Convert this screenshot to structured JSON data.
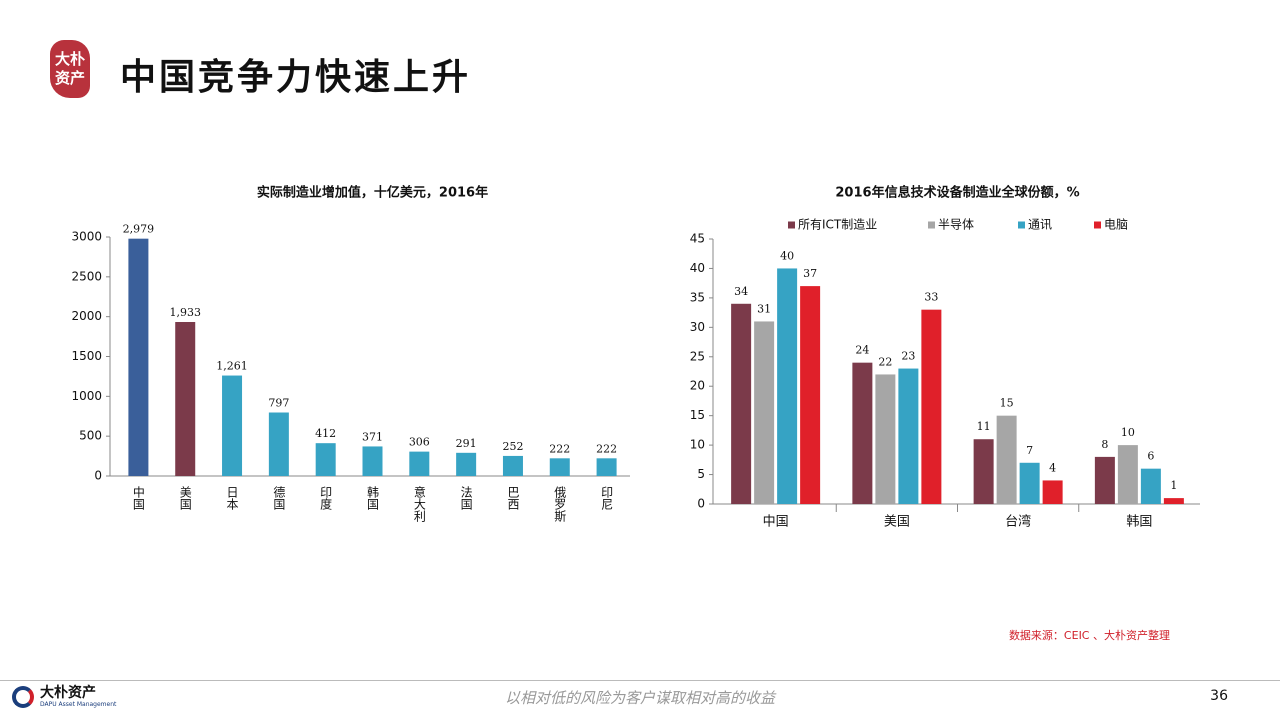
{
  "header": {
    "logo_text": "大朴资产",
    "title": "中国竞争力快速上升"
  },
  "chart_data": [
    {
      "type": "bar",
      "title": "实际制造业增加值，十亿美元，2016年",
      "categories": [
        "中国",
        "美国",
        "日本",
        "德国",
        "印度",
        "韩国",
        "意大利",
        "法国",
        "巴西",
        "俄罗斯",
        "印尼"
      ],
      "values": [
        2979,
        1933,
        1261,
        797,
        412,
        371,
        306,
        291,
        252,
        222,
        222
      ],
      "value_labels": [
        "2,979",
        "1,933",
        "1,261",
        "797",
        "412",
        "371",
        "306",
        "291",
        "252",
        "222",
        "222"
      ],
      "colors": [
        "#3a5f9a",
        "#7b3a4a",
        "#36a3c4",
        "#36a3c4",
        "#36a3c4",
        "#36a3c4",
        "#36a3c4",
        "#36a3c4",
        "#36a3c4",
        "#36a3c4",
        "#36a3c4"
      ],
      "ylim": [
        0,
        3000
      ],
      "yticks": [
        0,
        500,
        1000,
        1500,
        2000,
        2500,
        3000
      ],
      "grid": false
    },
    {
      "type": "grouped_bar",
      "title": "2016年信息技术设备制造业全球份额，%",
      "categories": [
        "中国",
        "美国",
        "台湾",
        "韩国"
      ],
      "series": [
        {
          "name": "所有ICT制造业",
          "color": "#7b3a4a",
          "values": [
            34,
            24,
            11,
            8
          ]
        },
        {
          "name": "半导体",
          "color": "#a6a6a6",
          "values": [
            31,
            22,
            15,
            10
          ]
        },
        {
          "name": "通讯",
          "color": "#36a3c4",
          "values": [
            40,
            23,
            7,
            6
          ]
        },
        {
          "name": "电脑",
          "color": "#e0202a",
          "values": [
            37,
            33,
            4,
            1
          ]
        }
      ],
      "ylim": [
        0,
        45
      ],
      "yticks": [
        0,
        5,
        10,
        15,
        20,
        25,
        30,
        35,
        40,
        45
      ],
      "grid": false,
      "legend": "top"
    }
  ],
  "source": "数据来源：CEIC 、大朴资产整理",
  "footer": {
    "company": "大朴资产",
    "company_en": "DAPU Asset Management",
    "slogan": "以相对低的风险为客户谋取相对高的收益",
    "page": "36"
  }
}
